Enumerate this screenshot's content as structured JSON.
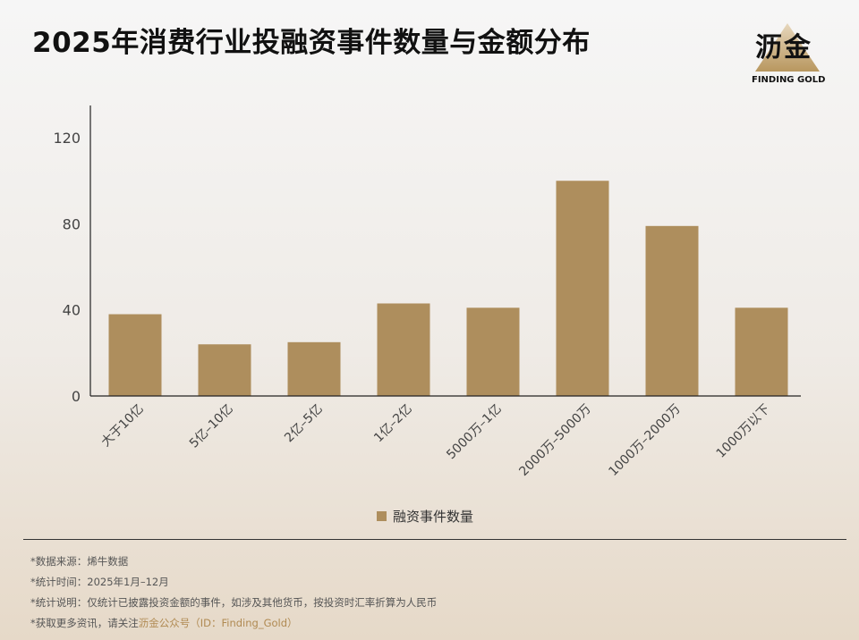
{
  "title": "2025年消费行业投融资事件数量与金额分布",
  "logo": {
    "cn": "沥金",
    "en": "FINDING GOLD",
    "icon": "mountain-logo-icon"
  },
  "colors": {
    "bar": "#ae8e5d",
    "axis": "#222222",
    "highlight": "#b08a52"
  },
  "chart_data": {
    "type": "bar",
    "categories": [
      "大于10亿",
      "5亿–10亿",
      "2亿–5亿",
      "1亿–2亿",
      "5000万–1亿",
      "2000万–5000万",
      "1000万–2000万",
      "1000万以下"
    ],
    "series": [
      {
        "name": "融资事件数量",
        "values": [
          38,
          24,
          25,
          43,
          41,
          100,
          79,
          41
        ]
      }
    ],
    "ylim": [
      0,
      135
    ],
    "yticks": [
      0,
      40,
      80,
      120
    ],
    "grid": false,
    "legend_position": "bottom-center"
  },
  "notes": {
    "source": "*数据来源：烯牛数据",
    "period": "*统计时间：2025年1月–12月",
    "explain": "*统计说明：仅统计已披露投资金额的事件，如涉及其他货币，按投资时汇率折算为人民币",
    "more_prefix": "*获取更多资讯，请关注",
    "more_account": "沥金公众号（ID：Finding_Gold）"
  }
}
